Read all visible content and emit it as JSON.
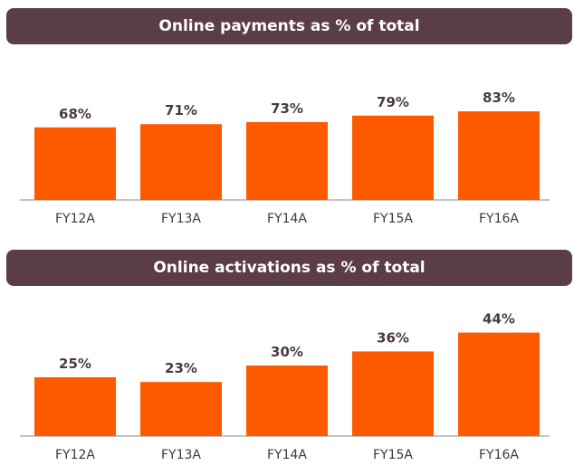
{
  "colors": {
    "header_bg": "#5b3d4a",
    "bar": "#ff5a00",
    "axis": "#888888"
  },
  "chart_data": [
    {
      "type": "bar",
      "title": "Online payments as % of total",
      "categories": [
        "FY12A",
        "FY13A",
        "FY14A",
        "FY15A",
        "FY16A"
      ],
      "values": [
        68,
        71,
        73,
        79,
        83
      ],
      "value_labels": [
        "68%",
        "71%",
        "73%",
        "79%",
        "83%"
      ],
      "ylim": [
        0,
        100
      ]
    },
    {
      "type": "bar",
      "title": "Online activations as % of total",
      "categories": [
        "FY12A",
        "FY13A",
        "FY14A",
        "FY15A",
        "FY16A"
      ],
      "values": [
        25,
        23,
        30,
        36,
        44
      ],
      "value_labels": [
        "25%",
        "23%",
        "30%",
        "36%",
        "44%"
      ],
      "ylim": [
        0,
        50
      ]
    }
  ]
}
